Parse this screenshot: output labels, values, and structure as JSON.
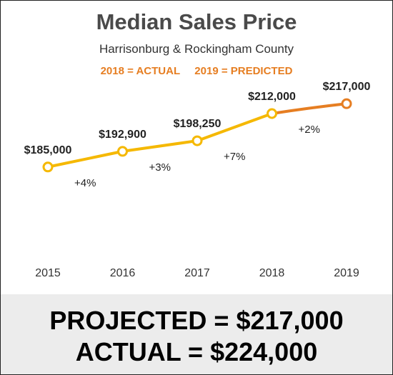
{
  "chart_data": {
    "type": "line",
    "title": "Median Sales Price",
    "subtitle": "Harrisonburg & Rockingham County",
    "legend": [
      "2018 = ACTUAL",
      "2019 = PREDICTED"
    ],
    "categories": [
      "2015",
      "2016",
      "2017",
      "2018",
      "2019"
    ],
    "values": [
      185000,
      192900,
      198250,
      212000,
      217000
    ],
    "value_labels": [
      "$185,000",
      "$192,900",
      "$198,250",
      "$212,000",
      "$217,000"
    ],
    "change_labels": [
      "+4%",
      "+3%",
      "+7%",
      "+2%"
    ],
    "predicted_from_index": 3,
    "ylim": [
      160000,
      225000
    ],
    "colors": {
      "actual": "#f5b800",
      "predicted": "#e67e22"
    }
  },
  "footer": {
    "projected": "PROJECTED = $217,000",
    "actual": "ACTUAL = $224,000"
  }
}
